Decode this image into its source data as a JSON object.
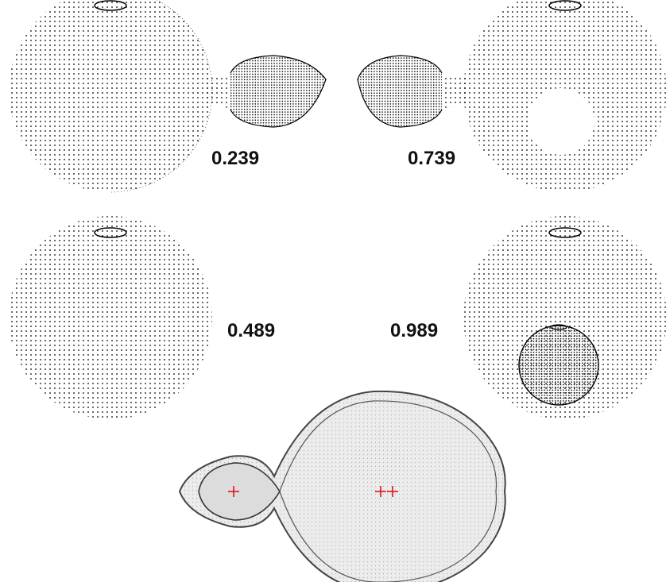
{
  "phases": [
    {
      "label": "0.239"
    },
    {
      "label": "0.739"
    },
    {
      "label": "0.489"
    },
    {
      "label": "0.989"
    }
  ],
  "colors": {
    "background": "#ffffff",
    "mesh_dot": "#000000",
    "roche_fill": "#e6e6e6",
    "roche_outline": "#444444",
    "center_marker": "#e0141e"
  }
}
